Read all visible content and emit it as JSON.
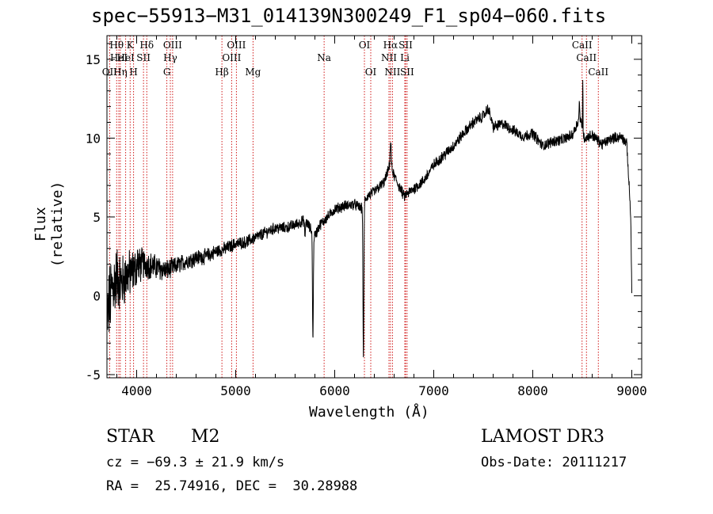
{
  "chart_data": {
    "type": "line",
    "title": "spec−55913−M31_014139N300249_F1_sp04−060.fits",
    "xlabel": "Wavelength (Å)",
    "ylabel": "Flux (relative)",
    "xlim": [
      3700,
      9100
    ],
    "ylim": [
      -5.2,
      16.5
    ],
    "xticks": [
      4000,
      5000,
      6000,
      7000,
      8000,
      9000
    ],
    "yticks": [
      -5,
      0,
      5,
      10,
      15
    ],
    "series": [
      {
        "name": "spectrum",
        "anchors_x": [
          3700,
          3750,
          3800,
          3850,
          3900,
          3950,
          4000,
          4050,
          4100,
          4200,
          4300,
          4400,
          4500,
          4600,
          4700,
          4800,
          4900,
          5000,
          5100,
          5200,
          5300,
          5400,
          5500,
          5600,
          5700,
          5750,
          5800,
          5850,
          5900,
          6000,
          6100,
          6200,
          6280,
          6300,
          6330,
          6400,
          6500,
          6560,
          6600,
          6700,
          6800,
          6900,
          7000,
          7100,
          7200,
          7300,
          7400,
          7500,
          7550,
          7600,
          7700,
          7800,
          7900,
          8000,
          8100,
          8200,
          8300,
          8400,
          8480,
          8500,
          8520,
          8600,
          8700,
          8800,
          8900,
          8950,
          8990,
          9000
        ],
        "anchors_y": [
          -1.5,
          0.5,
          1.2,
          0.8,
          1.3,
          1.5,
          1.8,
          2.0,
          2.0,
          1.8,
          1.6,
          1.9,
          2.2,
          2.4,
          2.5,
          2.8,
          3.0,
          3.3,
          3.4,
          3.7,
          4.0,
          4.3,
          4.3,
          4.5,
          4.8,
          4.3,
          3.8,
          4.5,
          4.8,
          5.5,
          5.7,
          5.8,
          5.5,
          6.0,
          6.3,
          6.6,
          7.2,
          8.3,
          7.6,
          6.3,
          6.8,
          7.3,
          8.3,
          8.9,
          9.5,
          10.3,
          11.0,
          11.4,
          11.9,
          10.7,
          10.9,
          10.5,
          10.1,
          10.3,
          9.5,
          9.8,
          9.9,
          10.2,
          11.4,
          10.4,
          10.0,
          10.2,
          9.6,
          10.0,
          10.1,
          9.6,
          5.0,
          0.0
        ],
        "noise": [
          [
            3700,
            2.2
          ],
          [
            3900,
            1.4
          ],
          [
            4100,
            0.8
          ],
          [
            4400,
            0.5
          ],
          [
            5000,
            0.35
          ],
          [
            6000,
            0.3
          ],
          [
            7000,
            0.32
          ],
          [
            9000,
            0.3
          ]
        ],
        "dips": [
          [
            5780,
            -6.9,
            6
          ],
          [
            6290,
            -10.0,
            6
          ],
          [
            4010,
            0.6,
            4
          ],
          [
            5700,
            -1.0,
            6
          ],
          [
            8470,
            1.0,
            4
          ]
        ],
        "spikes": [
          [
            8505,
            3.6,
            3
          ],
          [
            6565,
            1.5,
            8
          ]
        ]
      }
    ],
    "line_ids": [
      {
        "label": "Hθ",
        "x": 3798,
        "row": 1
      },
      {
        "label": "K",
        "x": 3934,
        "row": 1
      },
      {
        "label": "Hδ",
        "x": 4102,
        "row": 1
      },
      {
        "label": "OIII",
        "x": 4363,
        "row": 1
      },
      {
        "label": "OIII",
        "x": 5007,
        "row": 1
      },
      {
        "label": "OI",
        "x": 6300,
        "row": 1
      },
      {
        "label": "Hα",
        "x": 6563,
        "row": 1
      },
      {
        "label": "SII",
        "x": 6716,
        "row": 1
      },
      {
        "label": "CaII",
        "x": 8498,
        "row": 1
      },
      {
        "label": "HeI",
        "x": 3820,
        "row": 2
      },
      {
        "label": "HeI",
        "x": 3889,
        "row": 2
      },
      {
        "label": "SII",
        "x": 4069,
        "row": 2
      },
      {
        "label": "Hγ",
        "x": 4340,
        "row": 2
      },
      {
        "label": "OIII",
        "x": 4959,
        "row": 2
      },
      {
        "label": "Na",
        "x": 5893,
        "row": 2
      },
      {
        "label": "NII",
        "x": 6548,
        "row": 2
      },
      {
        "label": "Li",
        "x": 6708,
        "row": 2
      },
      {
        "label": "CaII",
        "x": 8542,
        "row": 2
      },
      {
        "label": "OII",
        "x": 3727,
        "row": 3
      },
      {
        "label": "Hη",
        "x": 3835,
        "row": 3
      },
      {
        "label": "H",
        "x": 3969,
        "row": 3
      },
      {
        "label": "G",
        "x": 4305,
        "row": 3
      },
      {
        "label": "Hβ",
        "x": 4861,
        "row": 3
      },
      {
        "label": "Mg",
        "x": 5175,
        "row": 3
      },
      {
        "label": "OI",
        "x": 6364,
        "row": 3
      },
      {
        "label": "NII",
        "x": 6583,
        "row": 3
      },
      {
        "label": "SII",
        "x": 6731,
        "row": 3
      },
      {
        "label": "CaII",
        "x": 8662,
        "row": 3
      }
    ]
  },
  "info": {
    "object_class": "STAR",
    "subclass": "M2",
    "survey": "LAMOST DR3",
    "cz": "cz = −69.3 ± 21.9 km/s",
    "obs_date": "Obs-Date: 20111217",
    "coords": "RA =  25.74916, DEC =  30.28988"
  },
  "colors": {
    "axis": "#000000",
    "spectrum": "#000000",
    "line_marker": "#cc0000",
    "background": "#ffffff"
  }
}
